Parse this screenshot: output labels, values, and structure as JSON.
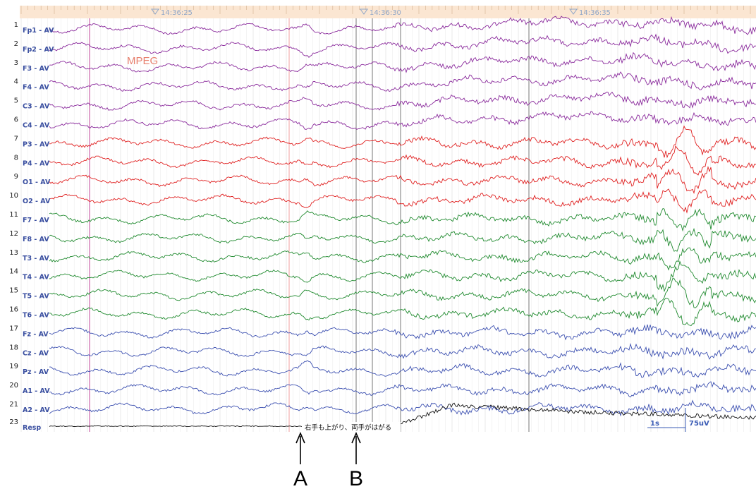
{
  "chart_data": {
    "type": "line",
    "title": "",
    "montage": "AV",
    "time_labels": [
      "14:36:25",
      "14:36:30",
      "14:36:35"
    ],
    "channels": [
      {
        "num": "1",
        "name": "Fp1 - AV",
        "color": "#8a2a9c"
      },
      {
        "num": "2",
        "name": "Fp2 - AV",
        "color": "#8a2a9c"
      },
      {
        "num": "3",
        "name": "F3 - AV",
        "color": "#8a2a9c"
      },
      {
        "num": "4",
        "name": "F4 - AV",
        "color": "#8a2a9c"
      },
      {
        "num": "5",
        "name": "C3 - AV",
        "color": "#8a2a9c"
      },
      {
        "num": "6",
        "name": "C4 - AV",
        "color": "#8a2a9c"
      },
      {
        "num": "7",
        "name": "P3 - AV",
        "color": "#e02020"
      },
      {
        "num": "8",
        "name": "P4 - AV",
        "color": "#e02020"
      },
      {
        "num": "9",
        "name": "O1 - AV",
        "color": "#e02020"
      },
      {
        "num": "10",
        "name": "O2 - AV",
        "color": "#e02020"
      },
      {
        "num": "11",
        "name": "F7 - AV",
        "color": "#1f8a2e"
      },
      {
        "num": "12",
        "name": "F8 - AV",
        "color": "#1f8a2e"
      },
      {
        "num": "13",
        "name": "T3 - AV",
        "color": "#1f8a2e"
      },
      {
        "num": "14",
        "name": "T4 - AV",
        "color": "#1f8a2e"
      },
      {
        "num": "15",
        "name": "T5 - AV",
        "color": "#1f8a2e"
      },
      {
        "num": "16",
        "name": "T6 - AV",
        "color": "#1f8a2e"
      },
      {
        "num": "17",
        "name": "Fz - AV",
        "color": "#3b4fb0"
      },
      {
        "num": "18",
        "name": "Cz - AV",
        "color": "#3b4fb0"
      },
      {
        "num": "19",
        "name": "Pz - AV",
        "color": "#3b4fb0"
      },
      {
        "num": "20",
        "name": "A1 - AV",
        "color": "#3b4fb0"
      },
      {
        "num": "21",
        "name": "A2 - AV",
        "color": "#3b4fb0"
      },
      {
        "num": "23",
        "name": "Resp",
        "color": "#111111"
      }
    ],
    "overlay_label": "MPEG",
    "annotation": "右手も上がり、両手がはがる",
    "scale_time": "1s",
    "scale_amplitude": "75uV",
    "markers": [
      "A",
      "B"
    ]
  }
}
